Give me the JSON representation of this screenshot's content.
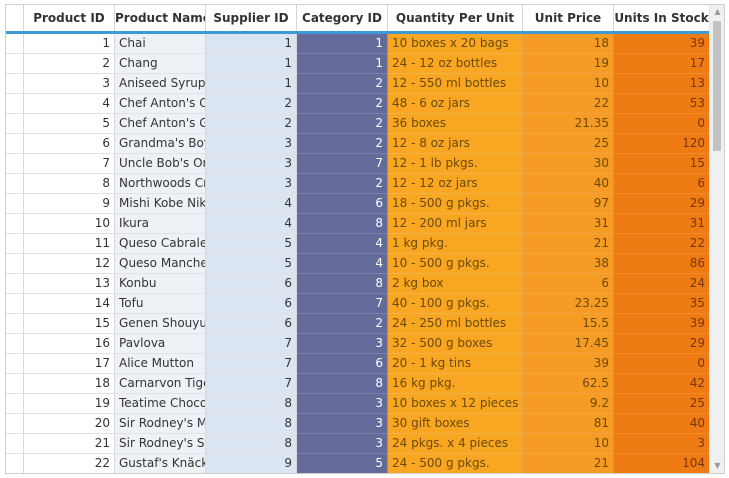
{
  "grid": {
    "columns": [
      "Product ID",
      "Product Name",
      "Supplier ID",
      "Category ID",
      "Quantity Per Unit",
      "Unit Price",
      "Units In Stock"
    ],
    "rows": [
      {
        "id": "1",
        "name": "Chai",
        "supplier": "1",
        "category": "1",
        "qty": "10 boxes x 20 bags",
        "price": "18",
        "stock": "39"
      },
      {
        "id": "2",
        "name": "Chang",
        "supplier": "1",
        "category": "1",
        "qty": "24 - 12 oz bottles",
        "price": "19",
        "stock": "17"
      },
      {
        "id": "3",
        "name": "Aniseed Syrup",
        "supplier": "1",
        "category": "2",
        "qty": "12 - 550 ml bottles",
        "price": "10",
        "stock": "13"
      },
      {
        "id": "4",
        "name": "Chef Anton's C",
        "supplier": "2",
        "category": "2",
        "qty": "48 - 6 oz jars",
        "price": "22",
        "stock": "53"
      },
      {
        "id": "5",
        "name": "Chef Anton's G",
        "supplier": "2",
        "category": "2",
        "qty": "36 boxes",
        "price": "21.35",
        "stock": "0"
      },
      {
        "id": "6",
        "name": "Grandma's Boy",
        "supplier": "3",
        "category": "2",
        "qty": "12 - 8 oz jars",
        "price": "25",
        "stock": "120"
      },
      {
        "id": "7",
        "name": "Uncle Bob's Or",
        "supplier": "3",
        "category": "7",
        "qty": "12 - 1 lb pkgs.",
        "price": "30",
        "stock": "15"
      },
      {
        "id": "8",
        "name": "Northwoods Cr",
        "supplier": "3",
        "category": "2",
        "qty": "12 - 12 oz jars",
        "price": "40",
        "stock": "6"
      },
      {
        "id": "9",
        "name": "Mishi Kobe Nik",
        "supplier": "4",
        "category": "6",
        "qty": "18 - 500 g pkgs.",
        "price": "97",
        "stock": "29"
      },
      {
        "id": "10",
        "name": "Ikura",
        "supplier": "4",
        "category": "8",
        "qty": "12 - 200 ml jars",
        "price": "31",
        "stock": "31"
      },
      {
        "id": "11",
        "name": "Queso Cabrale",
        "supplier": "5",
        "category": "4",
        "qty": "1 kg pkg.",
        "price": "21",
        "stock": "22"
      },
      {
        "id": "12",
        "name": "Queso Manche",
        "supplier": "5",
        "category": "4",
        "qty": "10 - 500 g pkgs.",
        "price": "38",
        "stock": "86"
      },
      {
        "id": "13",
        "name": "Konbu",
        "supplier": "6",
        "category": "8",
        "qty": "2 kg box",
        "price": "6",
        "stock": "24"
      },
      {
        "id": "14",
        "name": "Tofu",
        "supplier": "6",
        "category": "7",
        "qty": "40 - 100 g pkgs.",
        "price": "23.25",
        "stock": "35"
      },
      {
        "id": "15",
        "name": "Genen Shouyu",
        "supplier": "6",
        "category": "2",
        "qty": "24 - 250 ml bottles",
        "price": "15.5",
        "stock": "39"
      },
      {
        "id": "16",
        "name": "Pavlova",
        "supplier": "7",
        "category": "3",
        "qty": "32 - 500 g boxes",
        "price": "17.45",
        "stock": "29"
      },
      {
        "id": "17",
        "name": "Alice Mutton",
        "supplier": "7",
        "category": "6",
        "qty": "20 - 1 kg tins",
        "price": "39",
        "stock": "0"
      },
      {
        "id": "18",
        "name": "Carnarvon Tige",
        "supplier": "7",
        "category": "8",
        "qty": "16 kg pkg.",
        "price": "62.5",
        "stock": "42"
      },
      {
        "id": "19",
        "name": "Teatime Choco",
        "supplier": "8",
        "category": "3",
        "qty": "10 boxes x 12 pieces",
        "price": "9.2",
        "stock": "25"
      },
      {
        "id": "20",
        "name": "Sir Rodney's M",
        "supplier": "8",
        "category": "3",
        "qty": "30 gift boxes",
        "price": "81",
        "stock": "40"
      },
      {
        "id": "21",
        "name": "Sir Rodney's Sc",
        "supplier": "8",
        "category": "3",
        "qty": "24 pkgs. x 4 pieces",
        "price": "10",
        "stock": "3"
      },
      {
        "id": "22",
        "name": "Gustaf's Knäck",
        "supplier": "9",
        "category": "5",
        "qty": "24 - 500 g pkgs.",
        "price": "21",
        "stock": "104"
      }
    ]
  },
  "scrollbar": {
    "up_icon": "triangle-up",
    "down_icon": "triangle-down"
  },
  "colors": {
    "header_accent": "#3c9bd6",
    "name_column": "#eef2f7",
    "supplier_column": "#dbe5f1",
    "category_column": "#646b9a",
    "quantity_column": "#f9a623",
    "price_column": "#f69c24",
    "stock_column": "#ee7b13"
  }
}
